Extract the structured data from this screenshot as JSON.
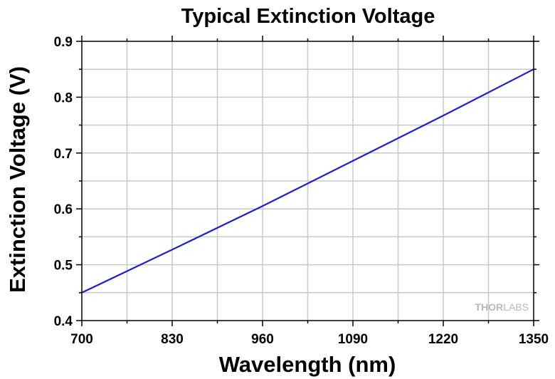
{
  "chart_data": {
    "type": "line",
    "title": "Typical Extinction Voltage",
    "xlabel": "Wavelength (nm)",
    "ylabel": "Extinction Voltage (V)",
    "xlim": [
      700,
      1350
    ],
    "ylim": [
      0.4,
      0.9
    ],
    "x_ticks": [
      700,
      830,
      960,
      1090,
      1220,
      1350
    ],
    "y_ticks": [
      0.4,
      0.5,
      0.6,
      0.7,
      0.8,
      0.9
    ],
    "grid": true,
    "series": [
      {
        "color": "#1f1fc8",
        "x": [
          700,
          830,
          960,
          1090,
          1220,
          1350
        ],
        "y": [
          0.45,
          0.527,
          0.605,
          0.686,
          0.767,
          0.85
        ]
      }
    ],
    "watermark": {
      "brand": "THORLABS"
    }
  },
  "colors": {
    "line": "#1f1fc8",
    "grid": "#c8c8c8",
    "axes": "#000000"
  }
}
